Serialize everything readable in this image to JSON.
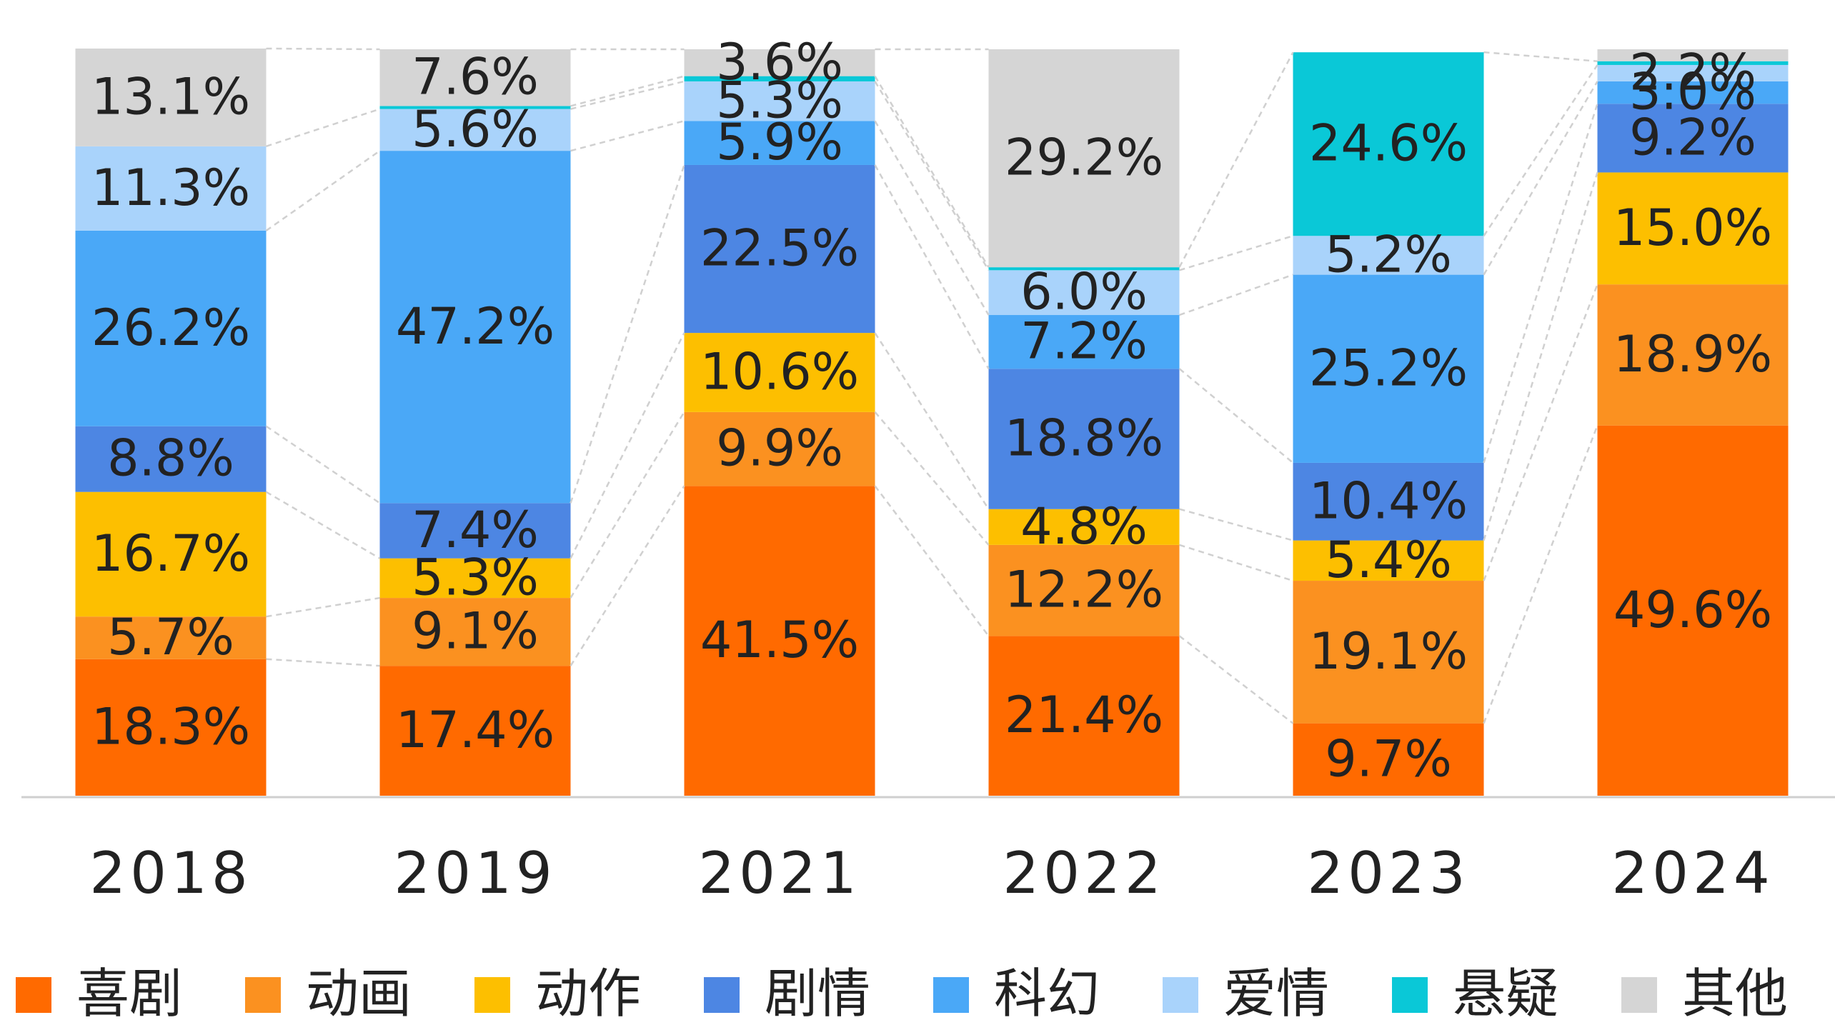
{
  "chart_data": {
    "type": "stacked-bar",
    "categories": [
      "2018",
      "2019",
      "2021",
      "2022",
      "2023",
      "2024"
    ],
    "ylim": [
      0,
      100
    ],
    "series": [
      {
        "name": "喜剧",
        "color": "#ff6a00",
        "values": [
          18.3,
          17.4,
          41.5,
          21.4,
          9.7,
          49.6
        ],
        "value_labels": [
          "18.3%",
          "17.4%",
          "41.5%",
          "21.4%",
          "9.7%",
          "49.6%"
        ]
      },
      {
        "name": "动画",
        "color": "#fb9120",
        "values": [
          5.7,
          9.1,
          9.9,
          12.2,
          19.1,
          18.9
        ],
        "value_labels": [
          "5.7%",
          "9.1%",
          "9.9%",
          "12.2%",
          "19.1%",
          "18.9%"
        ]
      },
      {
        "name": "动作",
        "color": "#fdbf00",
        "values": [
          16.7,
          5.3,
          10.6,
          4.8,
          5.4,
          15.0
        ],
        "value_labels": [
          "16.7%",
          "5.3%",
          "10.6%",
          "4.8%",
          "5.4%",
          "15.0%"
        ]
      },
      {
        "name": "剧情",
        "color": "#4d86e3",
        "values": [
          8.8,
          7.4,
          22.5,
          18.8,
          10.4,
          9.2
        ],
        "value_labels": [
          "8.8%",
          "7.4%",
          "22.5%",
          "18.8%",
          "10.4%",
          "9.2%"
        ]
      },
      {
        "name": "科幻",
        "color": "#4aa8f7",
        "values": [
          26.2,
          47.2,
          5.9,
          7.2,
          25.2,
          3.0
        ],
        "value_labels": [
          "26.2%",
          "47.2%",
          "5.9%",
          "7.2%",
          "25.2%",
          "3.0%"
        ]
      },
      {
        "name": "爱情",
        "color": "#a9d3fb",
        "values": [
          11.3,
          5.6,
          5.3,
          6.0,
          5.2,
          2.2
        ],
        "value_labels": [
          "11.3%",
          "5.6%",
          "5.3%",
          "6.0%",
          "5.2%",
          "2.2%"
        ]
      },
      {
        "name": "悬疑",
        "color": "#0ac8d7",
        "values": [
          null,
          0.4,
          0.7,
          0.4,
          24.6,
          0.5
        ],
        "value_labels": [
          null,
          null,
          null,
          null,
          "24.6%",
          null
        ]
      },
      {
        "name": "其他",
        "color": "#d5d5d5",
        "values": [
          13.1,
          7.6,
          3.6,
          29.2,
          null,
          1.6
        ],
        "value_labels": [
          "13.1%",
          "7.6%",
          "3.6%",
          "29.2%",
          null,
          null
        ]
      }
    ]
  }
}
